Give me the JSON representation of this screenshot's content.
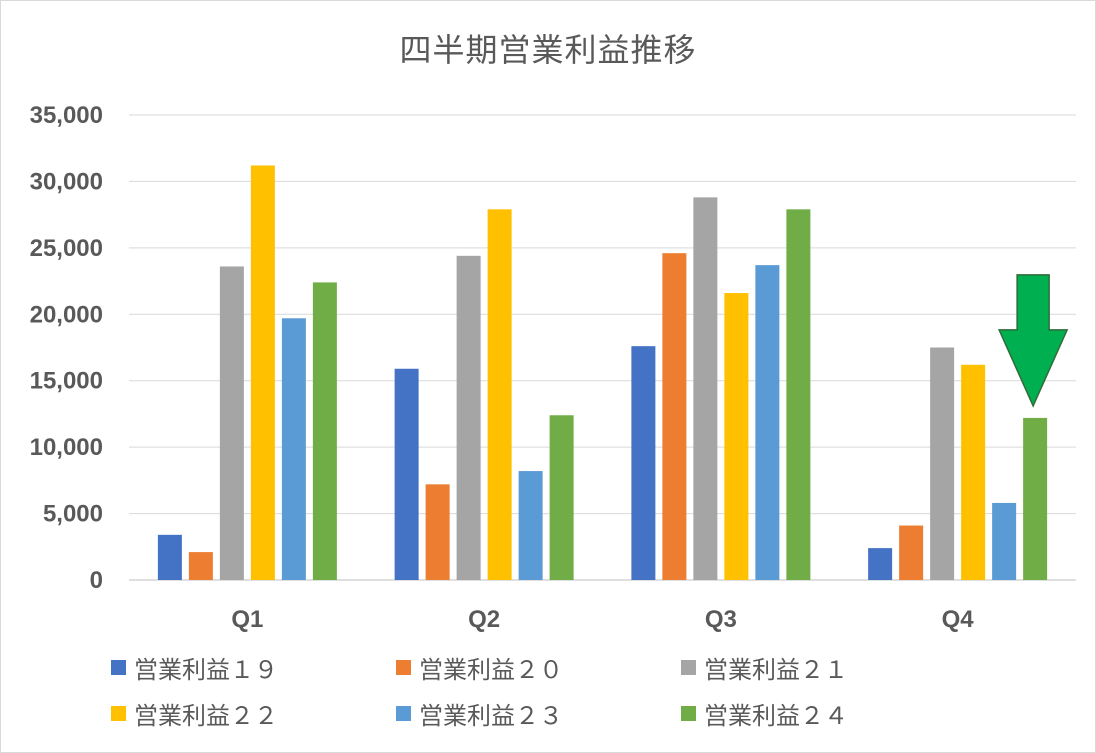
{
  "chart_data": {
    "type": "bar",
    "title": "四半期営業利益推移",
    "categories": [
      "Q1",
      "Q2",
      "Q3",
      "Q4"
    ],
    "ylim": [
      0,
      35000
    ],
    "yticks": [
      "0",
      "5,000",
      "10,000",
      "15,000",
      "20,000",
      "25,000",
      "30,000",
      "35,000"
    ],
    "grid": true,
    "legend_position": "bottom",
    "series": [
      {
        "name": "営業利益１９",
        "color": "#4472c4",
        "values": [
          3400,
          15900,
          17600,
          2400
        ]
      },
      {
        "name": "営業利益２０",
        "color": "#ed7d31",
        "values": [
          2100,
          7200,
          24600,
          4100
        ]
      },
      {
        "name": "営業利益２１",
        "color": "#a5a5a5",
        "values": [
          23600,
          24400,
          28800,
          17500
        ]
      },
      {
        "name": "営業利益２２",
        "color": "#ffc000",
        "values": [
          31200,
          27900,
          21600,
          16200
        ]
      },
      {
        "name": "営業利益２３",
        "color": "#5b9bd5",
        "values": [
          19700,
          8200,
          23700,
          5800
        ]
      },
      {
        "name": "営業利益２４",
        "color": "#70ad47",
        "values": [
          22400,
          12400,
          27900,
          12200
        ]
      }
    ],
    "annotation": {
      "shape": "down-arrow",
      "color": "#00b050",
      "category": "Q4",
      "series": "営業利益２４"
    }
  },
  "legend_labels": [
    "営業利益１９",
    "営業利益２０",
    "営業利益２１",
    "営業利益２２",
    "営業利益２３",
    "営業利益２４"
  ]
}
